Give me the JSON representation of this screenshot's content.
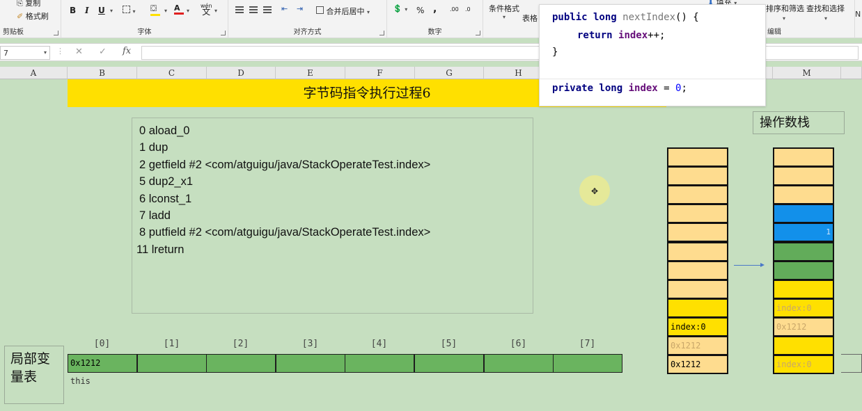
{
  "ribbon": {
    "clipboard": {
      "copy": "复制",
      "format_painter": "格式刷",
      "label": "剪贴板"
    },
    "font": {
      "bold": "B",
      "italic": "I",
      "underline": "U",
      "font_color_letter": "A",
      "phonetic": "wén",
      "label": "字体"
    },
    "alignment": {
      "merge_center": "合并后居中",
      "label": "对齐方式"
    },
    "number": {
      "percent": "%",
      "comma": ",",
      "inc_decimal": ".00",
      "dec_decimal": ".0",
      "label": "数字"
    },
    "styles": {
      "conditional_format": "条件格式",
      "table_partial": "表格"
    },
    "cells": {
      "fill": "填充"
    },
    "editing": {
      "sort_filter": "排序和筛选",
      "find_select": "查找和选择",
      "label": "编辑"
    }
  },
  "formula_bar": {
    "name_box": "7",
    "cancel": "✕",
    "enter": "✓",
    "fx": "fx",
    "value": ""
  },
  "columns": [
    "A",
    "B",
    "C",
    "D",
    "E",
    "F",
    "G",
    "H",
    "M"
  ],
  "sheet": {
    "title": "字节码指令执行过程6",
    "bytecode": [
      "0 aload_0",
      "1 dup",
      "2 getfield #2 <com/atguigu/java/StackOperateTest.index>",
      "5 dup2_x1",
      "6 lconst_1",
      "7 ladd",
      "8 putfield #2 <com/atguigu/java/StackOperateTest.index>",
      "11 lreturn"
    ],
    "local_var_table": {
      "label_line1": "局部变",
      "label_line2": "量表",
      "indices": [
        "[0]",
        "[1]",
        "[2]",
        "[3]",
        "[4]",
        "[5]",
        "[6]",
        "[7]"
      ],
      "slots": [
        "0x1212",
        "",
        "",
        "",
        "",
        "",
        "",
        ""
      ],
      "slot0_note": "this"
    },
    "operand_stack": {
      "label": "操作数栈",
      "stack_before": [
        {
          "text": "",
          "color": "light"
        },
        {
          "text": "",
          "color": "light"
        },
        {
          "text": "",
          "color": "light"
        },
        {
          "text": "",
          "color": "light"
        },
        {
          "text": "",
          "color": "light"
        },
        {
          "text": "",
          "color": "light"
        },
        {
          "text": "",
          "color": "light"
        },
        {
          "text": "",
          "color": "light"
        },
        {
          "text": "",
          "color": "yellow"
        },
        {
          "text": "index:0",
          "color": "yellow"
        },
        {
          "text": "0x1212",
          "color": "light",
          "faded": true
        },
        {
          "text": "0x1212",
          "color": "light"
        }
      ],
      "stack_after": [
        {
          "text": "",
          "color": "light"
        },
        {
          "text": "",
          "color": "light"
        },
        {
          "text": "",
          "color": "light"
        },
        {
          "text": "",
          "color": "blue"
        },
        {
          "text": "1",
          "color": "blue"
        },
        {
          "text": "",
          "color": "green"
        },
        {
          "text": "",
          "color": "green"
        },
        {
          "text": "",
          "color": "yellow"
        },
        {
          "text": "index:0",
          "color": "yellow",
          "faded": true
        },
        {
          "text": "0x1212",
          "color": "light",
          "faded": true
        },
        {
          "text": "",
          "color": "yellow"
        },
        {
          "text": "index:0",
          "color": "yellow",
          "faded": true
        }
      ]
    }
  },
  "popup": {
    "line1_kw": "public long",
    "line1_fn": "nextIndex",
    "line1_rest": "() {",
    "line2_kw": "return",
    "line2_fld": "index",
    "line2_rest": "++;",
    "line3": "}",
    "line4_kw": "private long",
    "line4_fld": "index",
    "line4_eq": " = ",
    "line4_num": "0",
    "line4_end": ";"
  },
  "colors": {
    "sheet_bg": "#c6dfc0",
    "title_band": "#ffe000",
    "stack_light": "#fedc8f",
    "stack_blue": "#1290ea",
    "stack_green": "#62ac5a",
    "lvt_green": "#6ab45f"
  }
}
